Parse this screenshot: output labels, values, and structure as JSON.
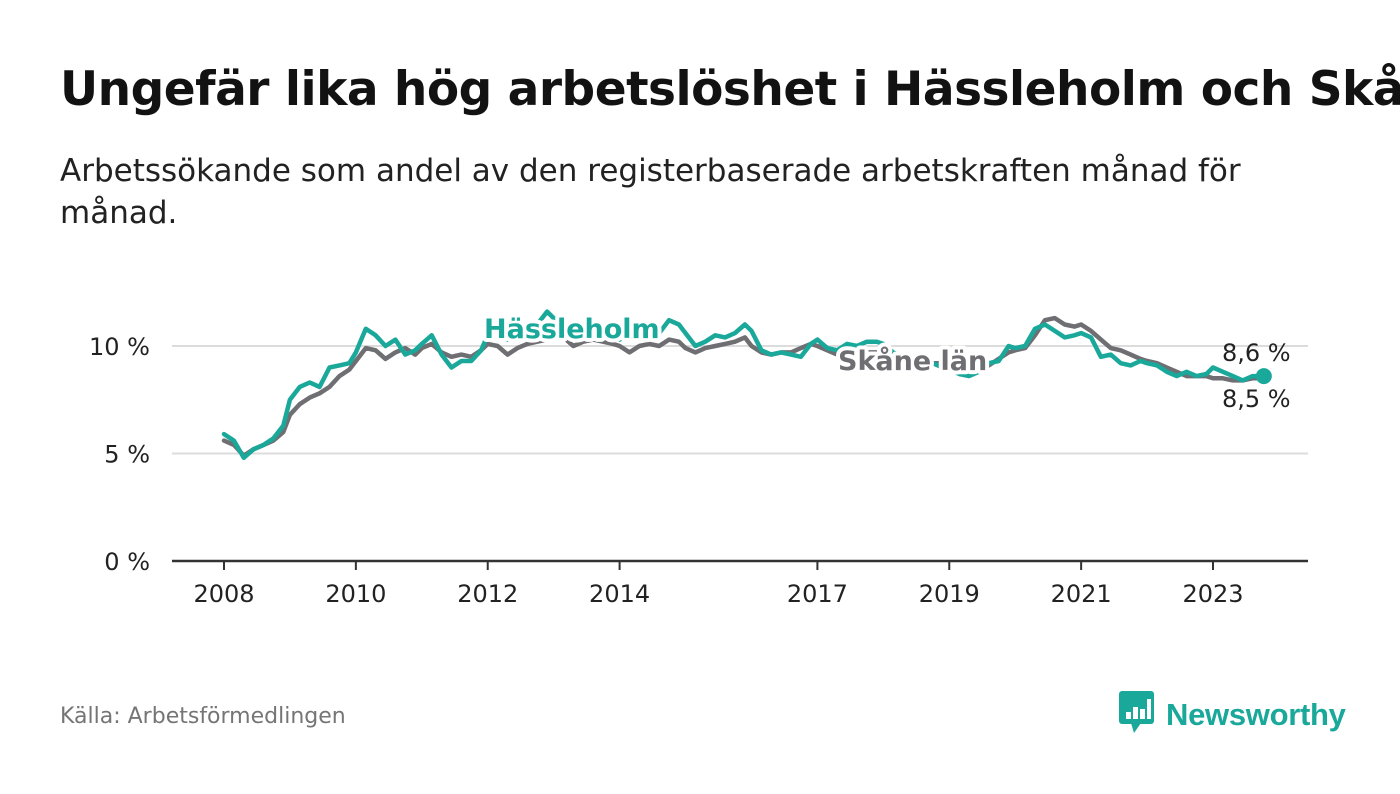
{
  "title": "Ungefär lika hög arbetslöshet i Hässleholm och Skåne",
  "subtitle": "Arbetssökande som andel av den registerbaserade arbetskraften månad för månad.",
  "source": "Källa: Arbetsförmedlingen",
  "brand": {
    "name": "Newsworthy",
    "icon": "newsworthy-logo-icon",
    "color": "#1aa89a"
  },
  "chart_data": {
    "type": "line",
    "title": "Ungefär lika hög arbetslöshet i Hässleholm och Skåne",
    "xlabel": "",
    "ylabel": "",
    "xlim": [
      2007.97,
      2023.72
    ],
    "ylim": [
      0,
      12
    ],
    "y_ticks": [
      {
        "value": 0,
        "label": "0 %"
      },
      {
        "value": 5,
        "label": "5 %"
      },
      {
        "value": 10,
        "label": "10 %"
      }
    ],
    "x_ticks": [
      {
        "value": 2008,
        "label": "2008"
      },
      {
        "value": 2010,
        "label": "2010"
      },
      {
        "value": 2012,
        "label": "2012"
      },
      {
        "value": 2014,
        "label": "2014"
      },
      {
        "value": 2017,
        "label": "2017"
      },
      {
        "value": 2019,
        "label": "2019"
      },
      {
        "value": 2021,
        "label": "2021"
      },
      {
        "value": 2023,
        "label": "2023"
      }
    ],
    "grid": "horizontal",
    "series": [
      {
        "name": "Skåne län",
        "color": "#6e6e73",
        "end_label": "8,5 %",
        "points": [
          [
            2008.0,
            5.6
          ],
          [
            2008.15,
            5.4
          ],
          [
            2008.3,
            4.9
          ],
          [
            2008.45,
            5.2
          ],
          [
            2008.6,
            5.4
          ],
          [
            2008.75,
            5.6
          ],
          [
            2008.9,
            6.0
          ],
          [
            2009.0,
            6.8
          ],
          [
            2009.15,
            7.3
          ],
          [
            2009.3,
            7.6
          ],
          [
            2009.45,
            7.8
          ],
          [
            2009.6,
            8.1
          ],
          [
            2009.75,
            8.6
          ],
          [
            2009.9,
            8.9
          ],
          [
            2010.0,
            9.3
          ],
          [
            2010.15,
            9.9
          ],
          [
            2010.3,
            9.8
          ],
          [
            2010.45,
            9.4
          ],
          [
            2010.6,
            9.7
          ],
          [
            2010.75,
            9.9
          ],
          [
            2010.9,
            9.6
          ],
          [
            2011.0,
            9.9
          ],
          [
            2011.15,
            10.1
          ],
          [
            2011.3,
            9.7
          ],
          [
            2011.45,
            9.5
          ],
          [
            2011.6,
            9.6
          ],
          [
            2011.75,
            9.5
          ],
          [
            2011.9,
            9.8
          ],
          [
            2012.0,
            10.1
          ],
          [
            2012.15,
            10.0
          ],
          [
            2012.3,
            9.6
          ],
          [
            2012.45,
            9.9
          ],
          [
            2012.6,
            10.1
          ],
          [
            2012.75,
            10.2
          ],
          [
            2012.9,
            10.3
          ],
          [
            2013.0,
            10.5
          ],
          [
            2013.15,
            10.4
          ],
          [
            2013.3,
            10.0
          ],
          [
            2013.45,
            10.2
          ],
          [
            2013.6,
            10.3
          ],
          [
            2013.75,
            10.2
          ],
          [
            2013.9,
            10.1
          ],
          [
            2014.0,
            10.0
          ],
          [
            2014.15,
            9.7
          ],
          [
            2014.3,
            10.0
          ],
          [
            2014.45,
            10.1
          ],
          [
            2014.6,
            10.0
          ],
          [
            2014.75,
            10.3
          ],
          [
            2014.9,
            10.2
          ],
          [
            2015.0,
            9.9
          ],
          [
            2015.15,
            9.7
          ],
          [
            2015.3,
            9.9
          ],
          [
            2015.45,
            10.0
          ],
          [
            2015.6,
            10.1
          ],
          [
            2015.75,
            10.2
          ],
          [
            2015.9,
            10.4
          ],
          [
            2016.0,
            10.0
          ],
          [
            2016.15,
            9.7
          ],
          [
            2016.3,
            9.6
          ],
          [
            2016.45,
            9.7
          ],
          [
            2016.6,
            9.7
          ],
          [
            2016.75,
            9.9
          ],
          [
            2016.9,
            10.1
          ],
          [
            2017.0,
            10.0
          ],
          [
            2017.15,
            9.8
          ],
          [
            2017.3,
            9.6
          ],
          [
            2017.45,
            9.7
          ],
          [
            2017.6,
            9.8
          ],
          [
            2017.75,
            9.7
          ],
          [
            2017.9,
            9.7
          ],
          [
            2018.0,
            9.8
          ],
          [
            2018.15,
            9.6
          ],
          [
            2018.3,
            9.3
          ],
          [
            2018.45,
            9.2
          ],
          [
            2018.6,
            9.2
          ],
          [
            2018.75,
            9.2
          ],
          [
            2018.9,
            9.2
          ],
          [
            2019.0,
            9.3
          ],
          [
            2019.15,
            9.1
          ],
          [
            2019.3,
            8.8
          ],
          [
            2019.45,
            8.9
          ],
          [
            2019.6,
            9.1
          ],
          [
            2019.75,
            9.4
          ],
          [
            2019.9,
            9.7
          ],
          [
            2020.0,
            9.8
          ],
          [
            2020.15,
            9.9
          ],
          [
            2020.3,
            10.5
          ],
          [
            2020.45,
            11.2
          ],
          [
            2020.6,
            11.3
          ],
          [
            2020.75,
            11.0
          ],
          [
            2020.9,
            10.9
          ],
          [
            2021.0,
            11.0
          ],
          [
            2021.15,
            10.7
          ],
          [
            2021.3,
            10.3
          ],
          [
            2021.45,
            9.9
          ],
          [
            2021.6,
            9.8
          ],
          [
            2021.75,
            9.6
          ],
          [
            2021.9,
            9.4
          ],
          [
            2022.0,
            9.3
          ],
          [
            2022.15,
            9.2
          ],
          [
            2022.3,
            9.0
          ],
          [
            2022.45,
            8.8
          ],
          [
            2022.6,
            8.6
          ],
          [
            2022.75,
            8.6
          ],
          [
            2022.9,
            8.6
          ],
          [
            2023.0,
            8.5
          ],
          [
            2023.15,
            8.5
          ],
          [
            2023.3,
            8.4
          ],
          [
            2023.45,
            8.4
          ],
          [
            2023.6,
            8.5
          ],
          [
            2023.68,
            8.5
          ]
        ]
      },
      {
        "name": "Hässleholm",
        "color": "#1aa89a",
        "end_label": "8,6 %",
        "points": [
          [
            2008.0,
            5.9
          ],
          [
            2008.15,
            5.6
          ],
          [
            2008.3,
            4.8
          ],
          [
            2008.45,
            5.2
          ],
          [
            2008.6,
            5.4
          ],
          [
            2008.75,
            5.7
          ],
          [
            2008.9,
            6.3
          ],
          [
            2009.0,
            7.5
          ],
          [
            2009.15,
            8.1
          ],
          [
            2009.3,
            8.3
          ],
          [
            2009.45,
            8.1
          ],
          [
            2009.6,
            9.0
          ],
          [
            2009.75,
            9.1
          ],
          [
            2009.9,
            9.2
          ],
          [
            2010.0,
            9.7
          ],
          [
            2010.15,
            10.8
          ],
          [
            2010.3,
            10.5
          ],
          [
            2010.45,
            10.0
          ],
          [
            2010.6,
            10.3
          ],
          [
            2010.75,
            9.6
          ],
          [
            2010.9,
            9.8
          ],
          [
            2011.0,
            10.1
          ],
          [
            2011.15,
            10.5
          ],
          [
            2011.3,
            9.6
          ],
          [
            2011.45,
            9.0
          ],
          [
            2011.6,
            9.3
          ],
          [
            2011.75,
            9.3
          ],
          [
            2011.9,
            9.8
          ],
          [
            2012.0,
            10.5
          ],
          [
            2012.15,
            10.6
          ],
          [
            2012.3,
            10.3
          ],
          [
            2012.45,
            10.6
          ],
          [
            2012.6,
            10.8
          ],
          [
            2012.75,
            11.0
          ],
          [
            2012.9,
            11.6
          ],
          [
            2013.0,
            11.3
          ],
          [
            2013.15,
            10.8
          ],
          [
            2013.3,
            10.5
          ],
          [
            2013.45,
            10.8
          ],
          [
            2013.6,
            11.0
          ],
          [
            2013.75,
            10.7
          ],
          [
            2013.9,
            10.5
          ],
          [
            2014.0,
            10.3
          ],
          [
            2014.15,
            10.5
          ],
          [
            2014.3,
            10.8
          ],
          [
            2014.45,
            10.5
          ],
          [
            2014.6,
            10.6
          ],
          [
            2014.75,
            11.2
          ],
          [
            2014.9,
            11.0
          ],
          [
            2015.0,
            10.6
          ],
          [
            2015.15,
            10.0
          ],
          [
            2015.3,
            10.2
          ],
          [
            2015.45,
            10.5
          ],
          [
            2015.6,
            10.4
          ],
          [
            2015.75,
            10.6
          ],
          [
            2015.9,
            11.0
          ],
          [
            2016.0,
            10.7
          ],
          [
            2016.15,
            9.8
          ],
          [
            2016.3,
            9.6
          ],
          [
            2016.45,
            9.7
          ],
          [
            2016.6,
            9.6
          ],
          [
            2016.75,
            9.5
          ],
          [
            2016.9,
            10.1
          ],
          [
            2017.0,
            10.3
          ],
          [
            2017.15,
            9.9
          ],
          [
            2017.3,
            9.8
          ],
          [
            2017.45,
            10.1
          ],
          [
            2017.6,
            10.0
          ],
          [
            2017.75,
            10.2
          ],
          [
            2017.9,
            10.2
          ],
          [
            2018.0,
            10.1
          ],
          [
            2018.15,
            9.7
          ],
          [
            2018.3,
            9.5
          ],
          [
            2018.45,
            9.4
          ],
          [
            2018.6,
            9.3
          ],
          [
            2018.75,
            9.2
          ],
          [
            2018.9,
            9.0
          ],
          [
            2019.0,
            8.9
          ],
          [
            2019.15,
            8.7
          ],
          [
            2019.3,
            8.6
          ],
          [
            2019.45,
            8.8
          ],
          [
            2019.6,
            9.2
          ],
          [
            2019.75,
            9.3
          ],
          [
            2019.9,
            10.0
          ],
          [
            2020.0,
            9.9
          ],
          [
            2020.15,
            10.0
          ],
          [
            2020.3,
            10.8
          ],
          [
            2020.45,
            11.0
          ],
          [
            2020.6,
            10.7
          ],
          [
            2020.75,
            10.4
          ],
          [
            2020.9,
            10.5
          ],
          [
            2021.0,
            10.6
          ],
          [
            2021.15,
            10.4
          ],
          [
            2021.3,
            9.5
          ],
          [
            2021.45,
            9.6
          ],
          [
            2021.6,
            9.2
          ],
          [
            2021.75,
            9.1
          ],
          [
            2021.9,
            9.3
          ],
          [
            2022.0,
            9.2
          ],
          [
            2022.15,
            9.1
          ],
          [
            2022.3,
            8.8
          ],
          [
            2022.45,
            8.6
          ],
          [
            2022.6,
            8.8
          ],
          [
            2022.75,
            8.6
          ],
          [
            2022.9,
            8.7
          ],
          [
            2023.0,
            9.0
          ],
          [
            2023.15,
            8.8
          ],
          [
            2023.3,
            8.6
          ],
          [
            2023.45,
            8.4
          ],
          [
            2023.6,
            8.6
          ],
          [
            2023.68,
            8.6
          ]
        ]
      }
    ]
  }
}
